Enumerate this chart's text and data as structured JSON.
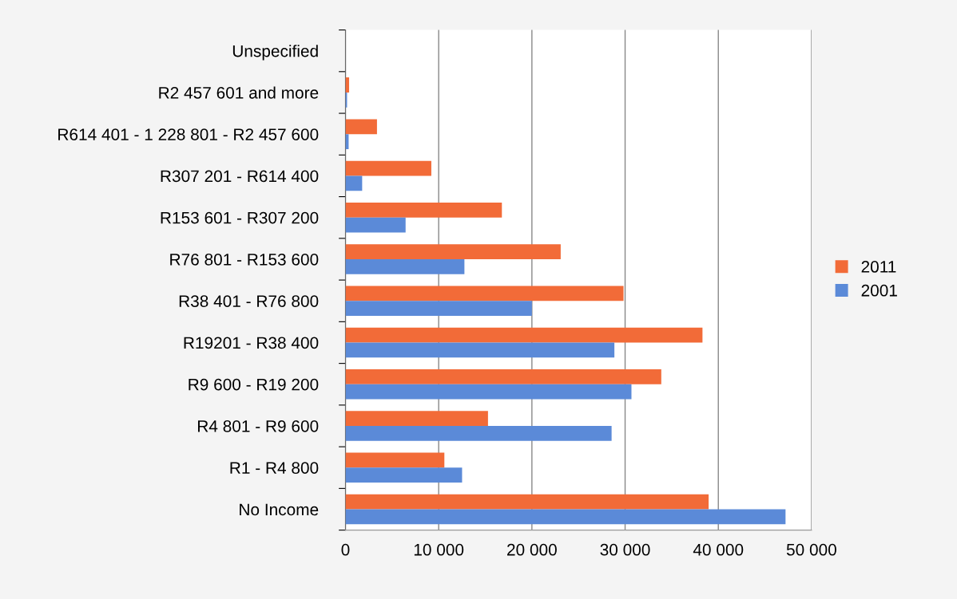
{
  "chart_data": {
    "type": "bar",
    "orientation": "horizontal",
    "categories": [
      "Unspecified",
      "R2 457 601 and more",
      "R614 401 - 1 228 801 - R2 457 600",
      "R307 201 - R614 400",
      "R153 601 - R307 200",
      "R76 801 - R153 600",
      "R38 401 - R76 800",
      "R19201 - R38 400",
      "R9 600 - R19 200",
      "R4 801 - R9 600",
      "R1 - R4 800",
      "No Income"
    ],
    "series": [
      {
        "name": "2011",
        "color": "#f26b38",
        "values": [
          0,
          390,
          3380,
          9210,
          16780,
          23090,
          29830,
          38300,
          33880,
          15290,
          10610,
          38960
        ]
      },
      {
        "name": "2001",
        "color": "#5b8ad8",
        "values": [
          0,
          170,
          340,
          1790,
          6450,
          12760,
          20000,
          28850,
          30680,
          28550,
          12510,
          47210
        ]
      }
    ],
    "xlim": [
      0,
      50000
    ],
    "xticks": [
      {
        "value": 0,
        "label": "0"
      },
      {
        "value": 10000,
        "label": "10 000"
      },
      {
        "value": 20000,
        "label": "20 000"
      },
      {
        "value": 30000,
        "label": "30 000"
      },
      {
        "value": 40000,
        "label": "40 000"
      },
      {
        "value": 50000,
        "label": "50 000"
      }
    ],
    "grid": "x",
    "legend": "right"
  }
}
